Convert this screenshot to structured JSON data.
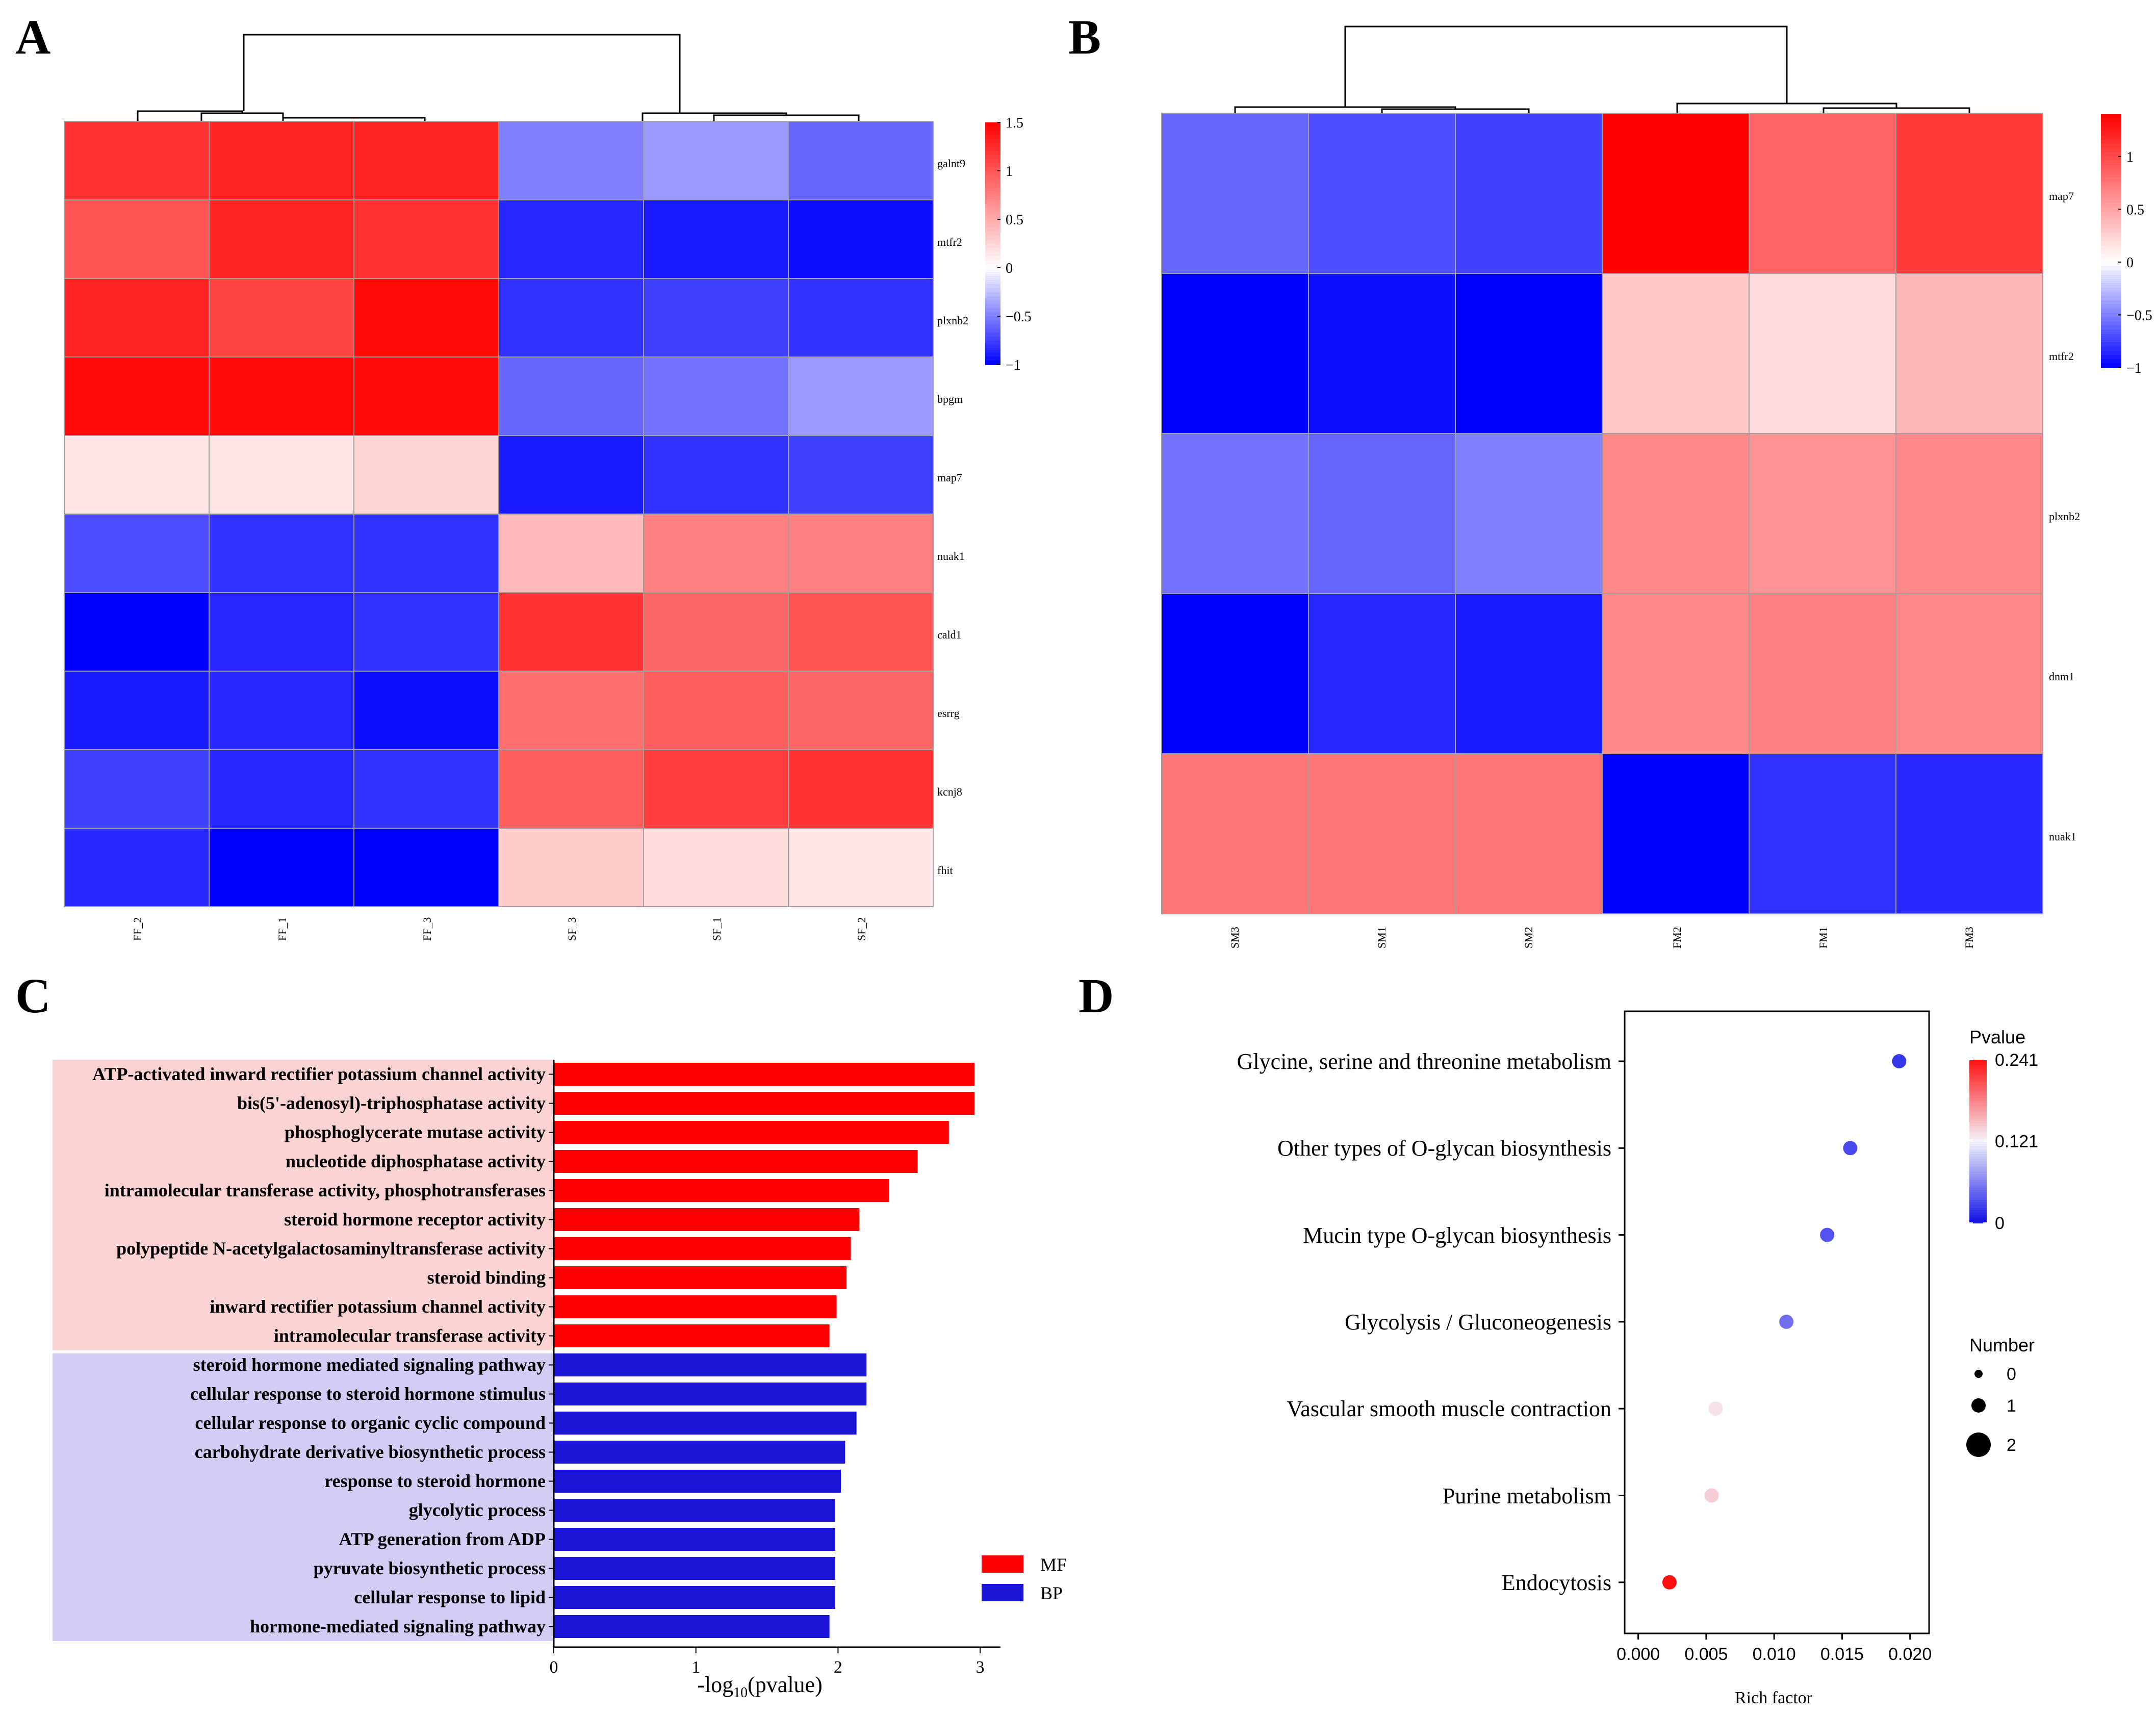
{
  "panels": {
    "a": "A",
    "b": "B",
    "c": "C",
    "d": "D"
  },
  "colors": {
    "low": "#0000ff",
    "mid": "#ffffff",
    "high": "#ff0000",
    "mf": "#ff0000",
    "bp": "#1a14d6",
    "mf_bg": "#fbd3d3",
    "bp_bg": "#d3cdf5",
    "grid": "#a0a0a0"
  },
  "chart_data": [
    {
      "id": "A",
      "type": "heatmap",
      "rows": [
        "galnt9",
        "mtfr2",
        "plxnb2",
        "bpgm",
        "map7",
        "nuak1",
        "cald1",
        "esrrg",
        "kcnj8",
        "fhit"
      ],
      "columns": [
        "FF_2",
        "FF_1",
        "FF_3",
        "SF_3",
        "SF_1",
        "SF_2"
      ],
      "values": [
        [
          1.2,
          1.3,
          1.3,
          -0.5,
          -0.4,
          -0.6
        ],
        [
          1.0,
          1.3,
          1.2,
          -0.85,
          -0.9,
          -0.95
        ],
        [
          1.3,
          1.1,
          1.45,
          -0.8,
          -0.75,
          -0.8
        ],
        [
          1.45,
          1.45,
          1.45,
          -0.6,
          -0.55,
          -0.4
        ],
        [
          0.15,
          0.15,
          0.25,
          -0.9,
          -0.8,
          -0.75
        ],
        [
          -0.7,
          -0.8,
          -0.8,
          0.4,
          0.75,
          0.75
        ],
        [
          -1.0,
          -0.85,
          -0.8,
          1.2,
          0.9,
          1.0
        ],
        [
          -0.9,
          -0.85,
          -0.95,
          0.85,
          0.95,
          0.9
        ],
        [
          -0.75,
          -0.85,
          -0.8,
          0.95,
          1.15,
          1.2
        ],
        [
          -0.85,
          -1.0,
          -1.0,
          0.3,
          0.2,
          0.15
        ]
      ],
      "color_range": [
        -1,
        1.5
      ],
      "colorbar_ticks": [
        "1.5",
        "1",
        "0.5",
        "0",
        "−0.5",
        "−1"
      ],
      "colorbar_values": [
        1.5,
        1,
        0.5,
        0,
        -0.5,
        -1
      ]
    },
    {
      "id": "B",
      "type": "heatmap",
      "rows": [
        "map7",
        "mtfr2",
        "plxnb2",
        "dnm1",
        "nuak1"
      ],
      "columns": [
        "SM3",
        "SM1",
        "SM2",
        "FM2",
        "FM1",
        "FM3"
      ],
      "values": [
        [
          -0.6,
          -0.7,
          -0.75,
          1.4,
          0.85,
          1.1
        ],
        [
          -1.0,
          -0.95,
          -1.0,
          0.3,
          0.2,
          0.4
        ],
        [
          -0.55,
          -0.6,
          -0.5,
          0.65,
          0.6,
          0.65
        ],
        [
          -1.0,
          -0.85,
          -0.9,
          0.65,
          0.7,
          0.65
        ],
        [
          0.75,
          0.75,
          0.75,
          -1.0,
          -0.8,
          -0.85
        ]
      ],
      "color_range": [
        -1,
        1.4
      ],
      "colorbar_ticks": [
        "1",
        "0.5",
        "0",
        "−0.5",
        "−1"
      ],
      "colorbar_values": [
        1,
        0.5,
        0,
        -0.5,
        -1
      ]
    },
    {
      "id": "C",
      "type": "bar",
      "orientation": "horizontal",
      "categories": [
        "ATP-activated inward rectifier potassium channel activity",
        "bis(5'-adenosyl)-triphosphatase activity",
        "phosphoglycerate mutase activity",
        "nucleotide diphosphatase activity",
        "intramolecular transferase activity, phosphotransferases",
        "steroid hormone receptor activity",
        "polypeptide N-acetylgalactosaminyltransferase activity",
        "steroid binding",
        "inward rectifier potassium channel activity",
        "intramolecular transferase activity",
        "steroid hormone mediated signaling pathway",
        "cellular response to steroid hormone stimulus",
        "cellular response to organic cyclic compound",
        "carbohydrate derivative biosynthetic process",
        "response to steroid hormone",
        "glycolytic process",
        "ATP generation from ADP",
        "pyruvate biosynthetic process",
        "cellular response to lipid",
        "hormone-mediated signaling pathway"
      ],
      "values": [
        2.96,
        2.96,
        2.78,
        2.56,
        2.36,
        2.15,
        2.09,
        2.06,
        1.99,
        1.94,
        2.2,
        2.2,
        2.13,
        2.05,
        2.02,
        1.98,
        1.98,
        1.98,
        1.98,
        1.94
      ],
      "groups": [
        "MF",
        "MF",
        "MF",
        "MF",
        "MF",
        "MF",
        "MF",
        "MF",
        "MF",
        "MF",
        "BP",
        "BP",
        "BP",
        "BP",
        "BP",
        "BP",
        "BP",
        "BP",
        "BP",
        "BP"
      ],
      "xlim": [
        0,
        3.1
      ],
      "xticks": [
        0,
        1,
        2,
        3
      ],
      "xlabel_prefix": "-log",
      "xlabel_sub": "10",
      "xlabel_suffix": "(pvalue)",
      "legend": [
        "MF",
        "BP"
      ],
      "legend_position": "bottom-right"
    },
    {
      "id": "D",
      "type": "scatter",
      "categories": [
        "Glycine, serine and threonine metabolism",
        "Other types of O-glycan biosynthesis",
        "Mucin type O-glycan biosynthesis",
        "Glycolysis / Gluconeogenesis",
        "Vascular smooth muscle contraction",
        "Purine metabolism",
        "Endocytosis"
      ],
      "rich_factor": [
        0.0192,
        0.0156,
        0.0139,
        0.0109,
        0.0057,
        0.0054,
        0.0023
      ],
      "pvalue": [
        0.02,
        0.03,
        0.035,
        0.05,
        0.13,
        0.14,
        0.241
      ],
      "number": [
        1,
        1,
        1,
        1,
        1,
        1,
        1
      ],
      "xlabel": "Rich factor",
      "xlim": [
        -0.001,
        0.0214
      ],
      "xticks": [
        "0.000",
        "0.005",
        "0.010",
        "0.015",
        "0.020"
      ],
      "xtick_values": [
        0,
        0.005,
        0.01,
        0.015,
        0.02
      ],
      "color_legend_title": "Pvalue",
      "color_ticks": [
        "0.241",
        "0.121",
        "0"
      ],
      "color_tick_values": [
        0.241,
        0.121,
        0
      ],
      "size_legend_title": "Number",
      "size_legend_labels": [
        "0",
        "1",
        "2"
      ],
      "size_legend_values": [
        0,
        1,
        2
      ]
    }
  ]
}
